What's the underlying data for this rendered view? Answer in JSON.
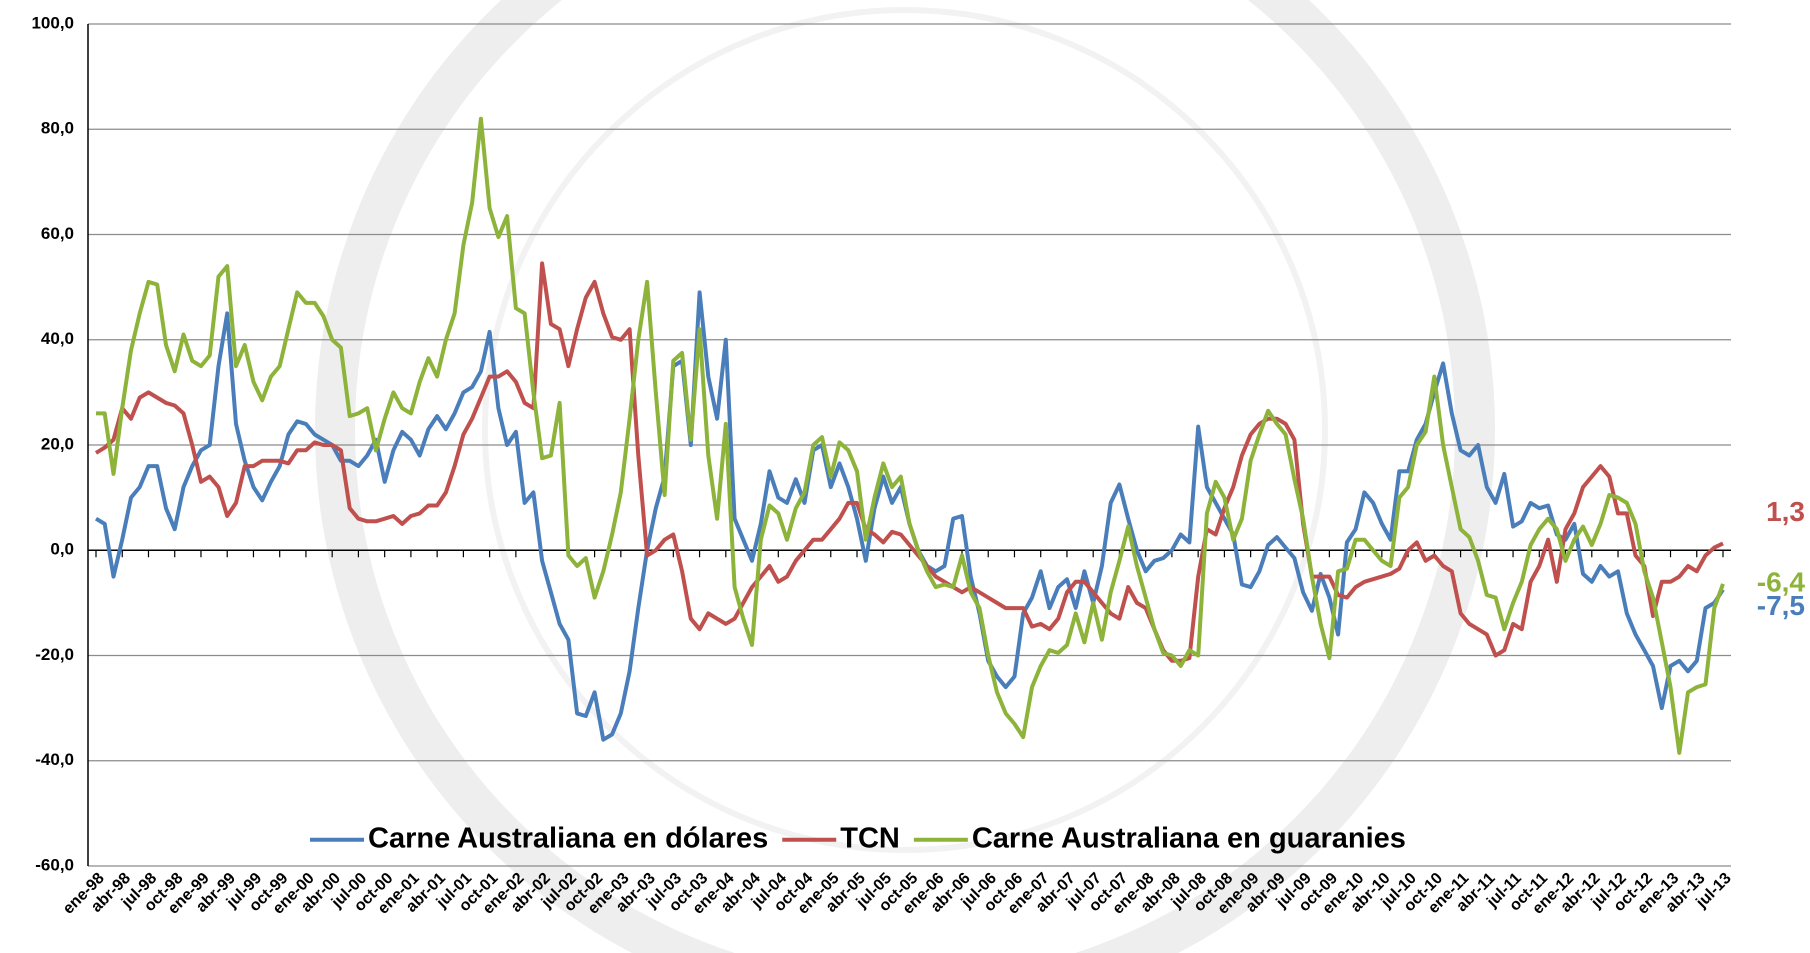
{
  "chart_data": {
    "type": "line",
    "categories": [
      "ene-98",
      null,
      null,
      "abr-98",
      null,
      null,
      "jul-98",
      null,
      null,
      "oct-98",
      null,
      null,
      "ene-99",
      null,
      null,
      "abr-99",
      null,
      null,
      "jul-99",
      null,
      null,
      "oct-99",
      null,
      null,
      "ene-00",
      null,
      null,
      "abr-00",
      null,
      null,
      "jul-00",
      null,
      null,
      "oct-00",
      null,
      null,
      "ene-01",
      null,
      null,
      "abr-01",
      null,
      null,
      "jul-01",
      null,
      null,
      "oct-01",
      null,
      null,
      "ene-02",
      null,
      null,
      "abr-02",
      null,
      null,
      "jul-02",
      null,
      null,
      "oct-02",
      null,
      null,
      "ene-03",
      null,
      null,
      "abr-03",
      null,
      null,
      "jul-03",
      null,
      null,
      "oct-03",
      null,
      null,
      "ene-04",
      null,
      null,
      "abr-04",
      null,
      null,
      "jul-04",
      null,
      null,
      "oct-04",
      null,
      null,
      "ene-05",
      null,
      null,
      "abr-05",
      null,
      null,
      "jul-05",
      null,
      null,
      "oct-05",
      null,
      null,
      "ene-06",
      null,
      null,
      "abr-06",
      null,
      null,
      "jul-06",
      null,
      null,
      "oct-06",
      null,
      null,
      "ene-07",
      null,
      null,
      "abr-07",
      null,
      null,
      "jul-07",
      null,
      null,
      "oct-07",
      null,
      null,
      "ene-08",
      null,
      null,
      "abr-08",
      null,
      null,
      "jul-08",
      null,
      null,
      "oct-08",
      null,
      null,
      "ene-09",
      null,
      null,
      "abr-09",
      null,
      null,
      "jul-09",
      null,
      null,
      "oct-09",
      null,
      null,
      "ene-10",
      null,
      null,
      "abr-10",
      null,
      null,
      "jul-10",
      null,
      null,
      "oct-10",
      null,
      null,
      "ene-11",
      null,
      null,
      "abr-11",
      null,
      null,
      "jul-11",
      null,
      null,
      "oct-11",
      null,
      null,
      "ene-12",
      null,
      null,
      "abr-12",
      null,
      null,
      "jul-12",
      null,
      null,
      "oct-12",
      null,
      null,
      "ene-13",
      null,
      null,
      "abr-13",
      null,
      null,
      "jul-13"
    ],
    "series": [
      {
        "name": "Carne Australiana en dólares",
        "color": "#4a7ebb",
        "last_label": "-7,5",
        "values": [
          6,
          5,
          -5,
          2,
          10,
          12,
          16,
          16,
          8,
          4,
          12,
          16,
          19,
          20,
          35,
          45,
          24,
          17,
          12,
          9.5,
          13,
          16,
          22,
          24.5,
          24,
          22,
          21,
          20,
          17,
          17,
          16,
          18,
          21,
          13,
          19,
          22.5,
          21,
          18,
          23,
          25.5,
          23,
          26,
          30,
          31,
          34,
          41.5,
          27,
          20,
          22.5,
          9,
          11,
          -2,
          -8,
          -14,
          -17,
          -31,
          -31.5,
          -27,
          -36,
          -35,
          -31,
          -23,
          -11,
          0,
          8,
          14,
          35,
          36,
          20,
          49,
          33,
          25,
          40,
          6,
          2,
          -2,
          5,
          15,
          10,
          9,
          13.5,
          9,
          19,
          20,
          12,
          16.5,
          12,
          6,
          -2,
          8,
          14,
          9,
          12,
          5,
          0,
          -3,
          -4,
          -3,
          6,
          6.5,
          -5,
          -12,
          -21,
          -24,
          -26,
          -24,
          -12,
          -9,
          -4,
          -11,
          -7,
          -5.5,
          -11,
          -4,
          -10,
          -3,
          9,
          12.5,
          6,
          0,
          -4,
          -2,
          -1.5,
          0,
          3,
          1.5,
          23.5,
          12,
          9,
          6,
          3,
          -6.5,
          -7,
          -4,
          1,
          2.5,
          0.5,
          -1.5,
          -8,
          -11.5,
          -4.5,
          -9,
          -16,
          1.5,
          4,
          11,
          9,
          5,
          2,
          15,
          15,
          21,
          24,
          30,
          35.5,
          26,
          19,
          18,
          20,
          12,
          9,
          14.5,
          4.5,
          5.5,
          9,
          8,
          8.5,
          3,
          2,
          5,
          -4.5,
          -6,
          -3,
          -5,
          -4,
          -12,
          -16,
          -19,
          -22,
          -30,
          -22,
          -21,
          -23,
          -21,
          -11,
          -10,
          -7.5
        ]
      },
      {
        "name": "TCN",
        "color": "#c0504d",
        "last_label": "1,3",
        "values": [
          18.5,
          19.5,
          21,
          27,
          25,
          29,
          30,
          29,
          28,
          27.5,
          26,
          20,
          13,
          14,
          12,
          6.5,
          9,
          16,
          16,
          17,
          17,
          17,
          16.5,
          19,
          19,
          20.5,
          20,
          20,
          19,
          8,
          6,
          5.5,
          5.5,
          6,
          6.5,
          5,
          6.5,
          7,
          8.5,
          8.5,
          11,
          16,
          22,
          25,
          29,
          33,
          33,
          34,
          32,
          28,
          27,
          54.5,
          43,
          42,
          35,
          42,
          48,
          51,
          45,
          40.5,
          40,
          42,
          18,
          -1,
          0,
          2,
          3,
          -4,
          -13,
          -15,
          -12,
          -13,
          -14,
          -13,
          -10,
          -7,
          -5,
          -3,
          -6,
          -5,
          -2,
          0,
          2,
          2,
          4,
          6,
          9,
          9,
          4,
          3,
          1.5,
          3.5,
          3,
          1,
          -1,
          -3,
          -5,
          -6,
          -7,
          -8,
          -7,
          -8,
          -9,
          -10,
          -11,
          -11,
          -11,
          -14.5,
          -14,
          -15,
          -13,
          -8,
          -6,
          -6,
          -8,
          -10,
          -12,
          -13,
          -7,
          -10,
          -11,
          -15,
          -19,
          -21,
          -21,
          -20.5,
          -5,
          4,
          3,
          8,
          12,
          18,
          22,
          24,
          25,
          25,
          24,
          21,
          5,
          -5,
          -5,
          -5,
          -8.5,
          -9,
          -7,
          -6,
          -5.5,
          -5,
          -4.5,
          -3.5,
          0,
          1.5,
          -2,
          -1,
          -3,
          -4,
          -12,
          -14,
          -15,
          -16,
          -20,
          -19,
          -14,
          -15,
          -6,
          -3,
          2,
          -6,
          4,
          7,
          12,
          14,
          16,
          14,
          7,
          7,
          -1,
          -3,
          -12.5,
          -6,
          -6,
          -5,
          -3,
          -4,
          -1,
          0.5,
          1.3
        ]
      },
      {
        "name": "Carne Australiana en guaranies",
        "color": "#8db33a",
        "last_label": "-6,4",
        "values": [
          26,
          26,
          14.5,
          27,
          38,
          45,
          51,
          50.5,
          39,
          34,
          41,
          36,
          35,
          37,
          52,
          54,
          35,
          39,
          32,
          28.5,
          33,
          35,
          42,
          49,
          47,
          47,
          44.5,
          40,
          38.5,
          25.5,
          26,
          27,
          19,
          25,
          30,
          27,
          26,
          32,
          36.5,
          33,
          40,
          45,
          58,
          66,
          82,
          65,
          59.5,
          63.5,
          46,
          45,
          30,
          17.5,
          18,
          28,
          -1,
          -3,
          -1.5,
          -9,
          -4,
          3,
          11,
          25,
          40,
          51,
          30,
          10.5,
          36,
          37.5,
          21,
          42,
          18,
          6,
          24,
          -7,
          -13,
          -18,
          2,
          8.5,
          7,
          2,
          8,
          11,
          20,
          21.5,
          14,
          20.5,
          19,
          15,
          2,
          10,
          16.5,
          12,
          14,
          5,
          0,
          -4,
          -7,
          -6.5,
          -7,
          -1,
          -8,
          -11,
          -20,
          -27,
          -31,
          -33,
          -35.5,
          -26,
          -22,
          -19,
          -19.5,
          -18,
          -12,
          -17.5,
          -10,
          -17,
          -8,
          -2,
          4.5,
          -3,
          -9,
          -15,
          -19.5,
          -20,
          -22,
          -19,
          -20,
          7,
          13,
          10,
          2,
          6,
          17,
          22,
          26.5,
          24,
          22,
          13.5,
          6,
          -5,
          -14,
          -20.5,
          -4,
          -3.5,
          2,
          2,
          0,
          -2,
          -3,
          10,
          12,
          20,
          22.5,
          33,
          20,
          12,
          4,
          2.5,
          -2,
          -8.5,
          -9,
          -15,
          -10,
          -6,
          1,
          4,
          6,
          4,
          -2,
          2,
          4.5,
          1,
          5,
          10.5,
          10,
          9,
          5,
          -4,
          -9,
          -17.5,
          -26,
          -38.5,
          -27,
          -26,
          -25.5,
          -11,
          -6.4
        ]
      }
    ],
    "ylim": [
      -60,
      100
    ],
    "yticks": [
      {
        "value": -60,
        "label": "-60,0"
      },
      {
        "value": -40,
        "label": "-40,0"
      },
      {
        "value": -20,
        "label": "-20,0"
      },
      {
        "value": 0,
        "label": "0,0"
      },
      {
        "value": 20,
        "label": "20,0"
      },
      {
        "value": 40,
        "label": "40,0"
      },
      {
        "value": 60,
        "label": "60,0"
      },
      {
        "value": 80,
        "label": "80,0"
      },
      {
        "value": 100,
        "label": "100,0"
      }
    ],
    "grid": true,
    "legend": "bottom"
  }
}
